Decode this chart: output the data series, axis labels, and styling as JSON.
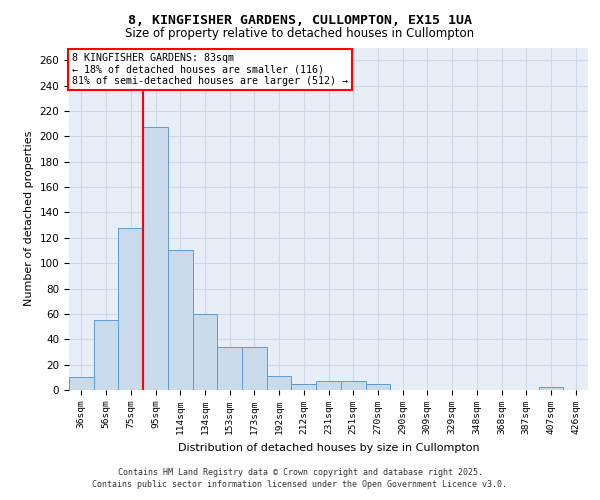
{
  "title_line1": "8, KINGFISHER GARDENS, CULLOMPTON, EX15 1UA",
  "title_line2": "Size of property relative to detached houses in Cullompton",
  "xlabel": "Distribution of detached houses by size in Cullompton",
  "ylabel": "Number of detached properties",
  "categories": [
    "36sqm",
    "56sqm",
    "75sqm",
    "95sqm",
    "114sqm",
    "134sqm",
    "153sqm",
    "173sqm",
    "192sqm",
    "212sqm",
    "231sqm",
    "251sqm",
    "270sqm",
    "290sqm",
    "309sqm",
    "329sqm",
    "348sqm",
    "368sqm",
    "387sqm",
    "407sqm",
    "426sqm"
  ],
  "values": [
    10,
    55,
    128,
    207,
    110,
    60,
    34,
    34,
    11,
    5,
    7,
    7,
    5,
    0,
    0,
    0,
    0,
    0,
    0,
    2,
    0
  ],
  "bar_color": "#c9daea",
  "bar_edge_color": "#5b9bd5",
  "grid_color": "#d0d8e8",
  "background_color": "#e8eef8",
  "fig_background": "#ffffff",
  "ylim": [
    0,
    270
  ],
  "yticks": [
    0,
    20,
    40,
    60,
    80,
    100,
    120,
    140,
    160,
    180,
    200,
    220,
    240,
    260
  ],
  "red_line_x": 2.5,
  "annotation_text_line1": "8 KINGFISHER GARDENS: 83sqm",
  "annotation_text_line2": "← 18% of detached houses are smaller (116)",
  "annotation_text_line3": "81% of semi-detached houses are larger (512) →",
  "footer_line1": "Contains HM Land Registry data © Crown copyright and database right 2025.",
  "footer_line2": "Contains public sector information licensed under the Open Government Licence v3.0."
}
